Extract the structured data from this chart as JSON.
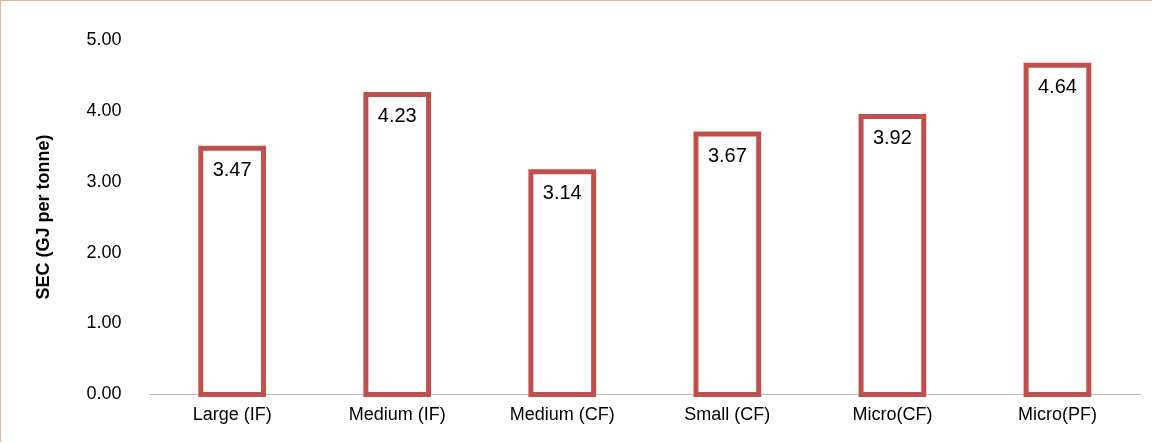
{
  "chart_data": {
    "type": "bar",
    "ylabel": "SEC (GJ per tonne)",
    "categories": [
      "Large (IF)",
      "Medium (IF)",
      "Medium (CF)",
      "Small (CF)",
      "Micro(CF)",
      "Micro(PF)"
    ],
    "values": [
      3.47,
      4.23,
      3.14,
      3.67,
      3.92,
      4.64
    ],
    "color": "#c0504d",
    "ylim": [
      0,
      5
    ],
    "yticks": [
      {
        "value": 0,
        "label": "0.00"
      },
      {
        "value": 1,
        "label": "1.00"
      },
      {
        "value": 2,
        "label": "2.00"
      },
      {
        "value": 3,
        "label": "3.00"
      },
      {
        "value": 4,
        "label": "4.00"
      },
      {
        "value": 5,
        "label": "5.00"
      }
    ],
    "grid": false,
    "legend": false,
    "data_labels": true
  }
}
